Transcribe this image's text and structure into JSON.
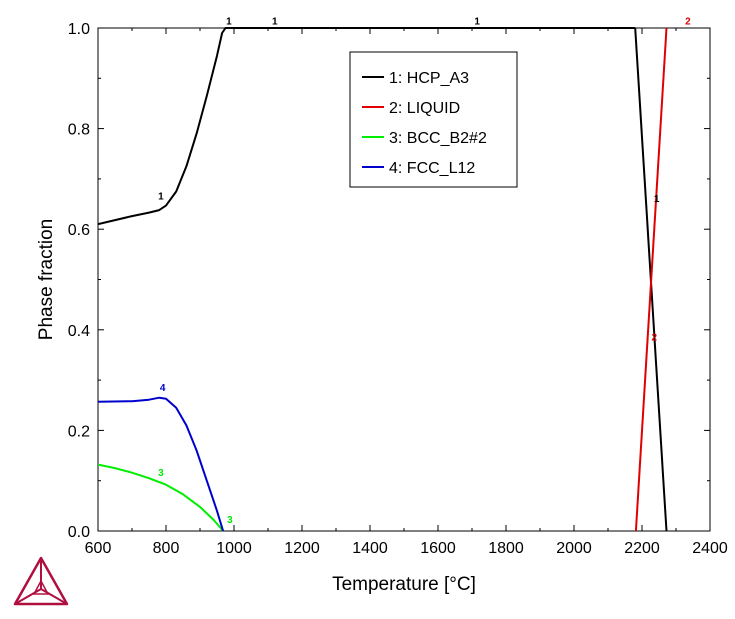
{
  "chart_data": {
    "type": "line",
    "xlabel": "Temperature [°C]",
    "ylabel": "Phase fraction",
    "xlim": [
      600,
      2400
    ],
    "ylim": [
      0,
      1.0
    ],
    "xticks": [
      600,
      800,
      1000,
      1200,
      1400,
      1600,
      1800,
      2000,
      2200,
      2400
    ],
    "yticks": [
      0.0,
      0.2,
      0.4,
      0.6,
      0.8,
      1.0
    ],
    "xtick_labels": [
      "600",
      "800",
      "1000",
      "1200",
      "1400",
      "1600",
      "1800",
      "2000",
      "2200",
      "2400"
    ],
    "ytick_labels": [
      "0.0",
      "0.2",
      "0.4",
      "0.6",
      "0.8",
      "1.0"
    ],
    "grid": false,
    "legend_position": "top-center",
    "series": [
      {
        "name": "1: HCP_A3",
        "color": "#000000",
        "segments": [
          [
            [
              600,
              0.61
            ],
            [
              650,
              0.618
            ],
            [
              700,
              0.626
            ],
            [
              750,
              0.633
            ],
            [
              780,
              0.638
            ],
            [
              800,
              0.647
            ],
            [
              830,
              0.675
            ],
            [
              860,
              0.725
            ],
            [
              890,
              0.79
            ],
            [
              920,
              0.865
            ],
            [
              950,
              0.945
            ],
            [
              965,
              0.99
            ],
            [
              975,
              1.0
            ],
            [
              990,
              1.0
            ]
          ],
          [
            [
              990,
              1.0
            ],
            [
              2180,
              1.0
            ]
          ],
          [
            [
              2180,
              1.0
            ],
            [
              2272,
              0.0
            ]
          ]
        ]
      },
      {
        "name": "2: LIQUID",
        "color": "#e00000",
        "segments": [
          [
            [
              2182,
              0.0
            ],
            [
              2272,
              1.0
            ]
          ]
        ]
      },
      {
        "name": "3: BCC_B2#2",
        "color": "#00ee00",
        "segments": [
          [
            [
              600,
              0.132
            ],
            [
              650,
              0.125
            ],
            [
              700,
              0.116
            ],
            [
              750,
              0.105
            ],
            [
              800,
              0.092
            ],
            [
              850,
              0.073
            ],
            [
              900,
              0.048
            ],
            [
              940,
              0.022
            ],
            [
              962,
              0.005
            ],
            [
              968,
              0.0
            ]
          ]
        ]
      },
      {
        "name": "4: FCC_L12",
        "color": "#0000cc",
        "segments": [
          [
            [
              600,
              0.257
            ],
            [
              700,
              0.258
            ],
            [
              750,
              0.261
            ],
            [
              780,
              0.265
            ],
            [
              800,
              0.263
            ],
            [
              830,
              0.245
            ],
            [
              860,
              0.21
            ],
            [
              890,
              0.16
            ],
            [
              920,
              0.1
            ],
            [
              950,
              0.04
            ],
            [
              968,
              0.0
            ]
          ]
        ]
      }
    ],
    "curve_labels": [
      {
        "text": "1",
        "x": 985,
        "y": 1.003,
        "color": "#000000"
      },
      {
        "text": "1",
        "x": 1120,
        "y": 1.003,
        "color": "#000000"
      },
      {
        "text": "1",
        "x": 1715,
        "y": 1.003,
        "color": "#000000"
      },
      {
        "text": "2",
        "x": 2335,
        "y": 1.003,
        "color": "#e00000"
      },
      {
        "text": "1",
        "x": 785,
        "y": 0.655,
        "color": "#000000"
      },
      {
        "text": "1",
        "x": 2243,
        "y": 0.65,
        "color": "#000000"
      },
      {
        "text": "2",
        "x": 2236,
        "y": 0.375,
        "color": "#e00000"
      },
      {
        "text": "4",
        "x": 790,
        "y": 0.274,
        "color": "#0000cc"
      },
      {
        "text": "3",
        "x": 785,
        "y": 0.105,
        "color": "#00ee00"
      },
      {
        "text": "3",
        "x": 988,
        "y": 0.012,
        "color": "#00ee00"
      }
    ]
  },
  "logo": {
    "name": "thermo-calc-logo",
    "color": "#b01040"
  }
}
